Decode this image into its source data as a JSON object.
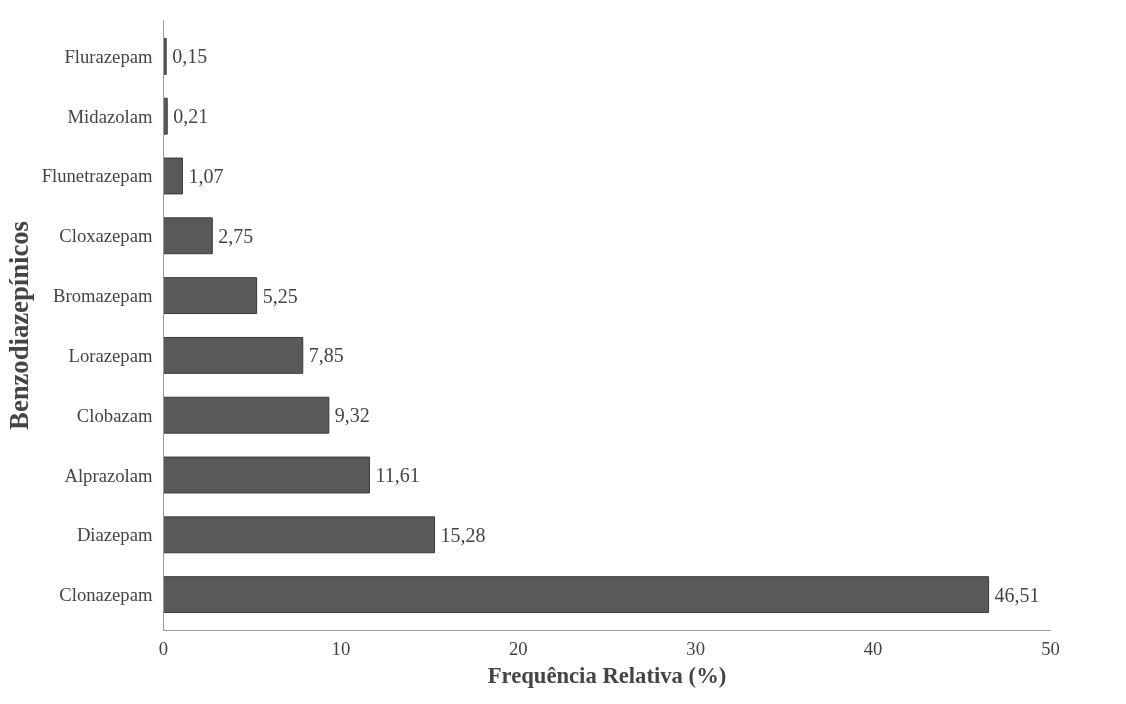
{
  "chart_data": {
    "type": "bar",
    "orientation": "horizontal",
    "xlabel": "Frequência Relativa (%)",
    "ylabel": "Benzodiazepínicos",
    "categories": [
      "Flurazepam",
      "Midazolam",
      "Flunetrazepam",
      "Cloxazepam",
      "Bromazepam",
      "Lorazepam",
      "Clobazam",
      "Alprazolam",
      "Diazepam",
      "Clonazepam"
    ],
    "values": [
      0.15,
      0.21,
      1.07,
      2.75,
      5.25,
      7.85,
      9.32,
      11.61,
      15.28,
      46.51
    ],
    "value_labels": [
      "0,15",
      "0,21",
      "1,07",
      "2,75",
      "5,25",
      "7,85",
      "9,32",
      "11,61",
      "15,28",
      "46,51"
    ],
    "color": "#595959",
    "xlim": [
      0,
      50
    ],
    "xticks": [
      0,
      10,
      20,
      30,
      40,
      50
    ],
    "grid": false
  }
}
